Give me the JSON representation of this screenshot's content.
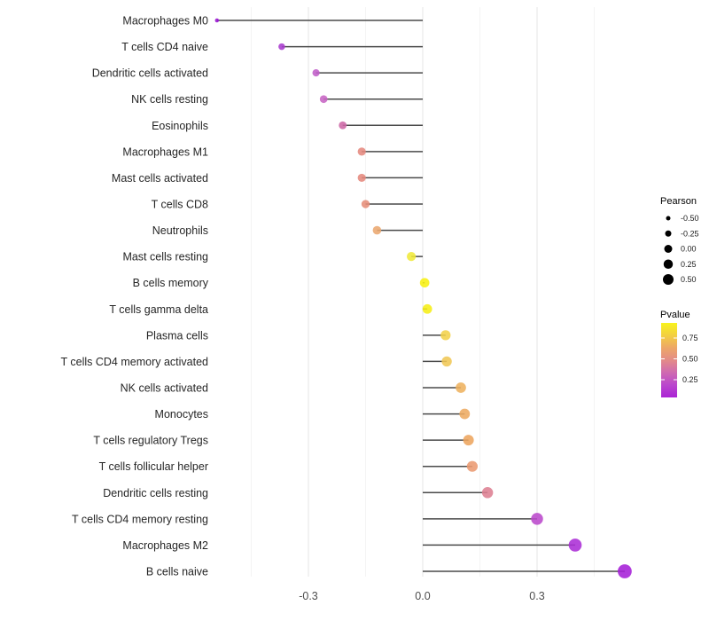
{
  "chart_data": {
    "type": "lollipop",
    "title": "",
    "xlabel": "",
    "ylabel": "",
    "x_tick_labels": [
      "-0.3",
      "0.0",
      "0.3"
    ],
    "x_tick_values": [
      -0.3,
      0.0,
      0.3
    ],
    "xlim": [
      -0.56,
      0.56
    ],
    "grid": {
      "minor_step": 0.15,
      "major_color": "#e8e8e8",
      "minor_color": "#f4f4f4"
    },
    "stem_color": "#4a4a4a",
    "rows": [
      {
        "label": "Macrophages M0",
        "pearson": -0.54,
        "color": "#9914d1",
        "diameter": 4.5
      },
      {
        "label": "T cells CD4 naive",
        "pearson": -0.37,
        "color": "#a93bce",
        "diameter": 7.5
      },
      {
        "label": "Dendritic cells activated",
        "pearson": -0.28,
        "color": "#c05dc8",
        "diameter": 8.2
      },
      {
        "label": "NK cells resting",
        "pearson": -0.26,
        "color": "#c764c4",
        "diameter": 8.7
      },
      {
        "label": "Eosinophils",
        "pearson": -0.21,
        "color": "#cd68a6",
        "diameter": 8.8
      },
      {
        "label": "Macrophages M1",
        "pearson": -0.16,
        "color": "#e5897e",
        "diameter": 9.2
      },
      {
        "label": "Mast cells activated",
        "pearson": -0.16,
        "color": "#e5897d",
        "diameter": 9.2
      },
      {
        "label": "T cells CD8",
        "pearson": -0.15,
        "color": "#e68d79",
        "diameter": 9.3
      },
      {
        "label": "Neutrophils",
        "pearson": -0.12,
        "color": "#eba76f",
        "diameter": 9.6
      },
      {
        "label": "Mast cells resting",
        "pearson": -0.03,
        "color": "#f0e93a",
        "diameter": 10.2
      },
      {
        "label": "B cells memory",
        "pearson": 0.005,
        "color": "#f7f011",
        "diameter": 10.7
      },
      {
        "label": "T cells gamma delta",
        "pearson": 0.012,
        "color": "#f6ee16",
        "diameter": 10.8
      },
      {
        "label": "Plasma cells",
        "pearson": 0.06,
        "color": "#f2d24a",
        "diameter": 11.3
      },
      {
        "label": "T cells CD4 memory activated",
        "pearson": 0.063,
        "color": "#f0c755",
        "diameter": 11.4
      },
      {
        "label": "NK cells activated",
        "pearson": 0.1,
        "color": "#eeb25e",
        "diameter": 11.7
      },
      {
        "label": "Monocytes",
        "pearson": 0.11,
        "color": "#edaa61",
        "diameter": 11.8
      },
      {
        "label": "T cells regulatory  Tregs",
        "pearson": 0.12,
        "color": "#eda55f",
        "diameter": 12.0
      },
      {
        "label": "T cells follicular helper",
        "pearson": 0.13,
        "color": "#eb9a71",
        "diameter": 12.2
      },
      {
        "label": "Dendritic cells resting",
        "pearson": 0.17,
        "color": "#dd7f92",
        "diameter": 12.5
      },
      {
        "label": "T cells CD4 memory resting",
        "pearson": 0.3,
        "color": "#bb49cc",
        "diameter": 13.5
      },
      {
        "label": "Macrophages M2",
        "pearson": 0.4,
        "color": "#ab2dd6",
        "diameter": 14.7
      },
      {
        "label": "B cells naive",
        "pearson": 0.53,
        "color": "#a51fd7",
        "diameter": 15.8
      }
    ],
    "legend": {
      "pearson": {
        "title": "Pearson",
        "entries": [
          {
            "label": "-0.50",
            "diameter": 5
          },
          {
            "label": "-0.25",
            "diameter": 7
          },
          {
            "label": "0.00",
            "diameter": 9
          },
          {
            "label": "0.25",
            "diameter": 10.5
          },
          {
            "label": "0.50",
            "diameter": 12
          }
        ],
        "dot_color": "#000000"
      },
      "pvalue": {
        "title": "Pvalue",
        "tick_labels": [
          "0.75",
          "0.50",
          "0.25"
        ],
        "gradient_top_to_bottom": [
          "#f8f31d",
          "#f3cf41",
          "#eda767",
          "#e38b88",
          "#cf6ab1",
          "#ba47cd",
          "#aa23d5"
        ]
      }
    },
    "axis_text_color": "#4d4d4d",
    "label_text_color": "#262626"
  }
}
